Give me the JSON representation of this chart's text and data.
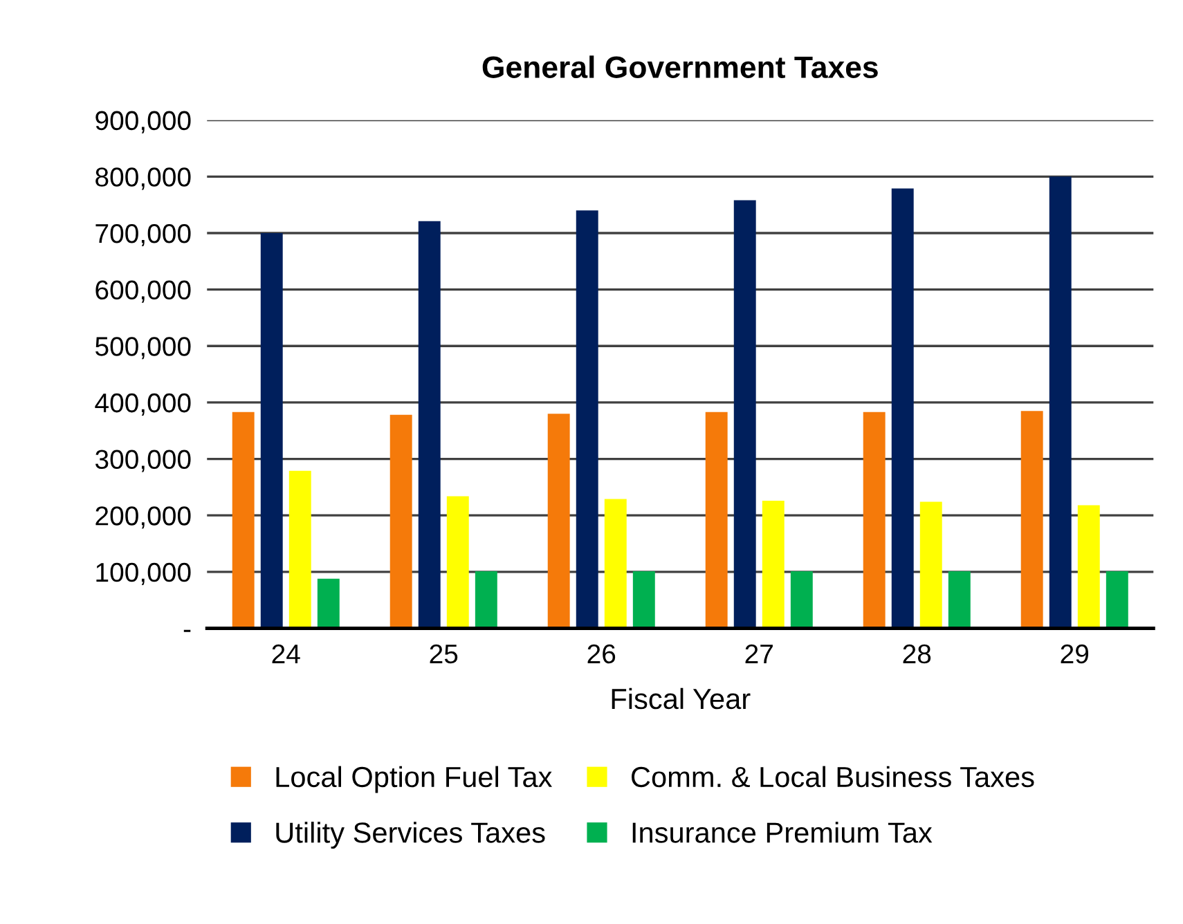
{
  "chart_data": {
    "type": "bar",
    "title": "General Government Taxes",
    "xlabel": "Fiscal Year",
    "categories": [
      "24",
      "25",
      "26",
      "27",
      "28",
      "29"
    ],
    "series": [
      {
        "name": "Local Option Fuel Tax",
        "color": "#f57a0a",
        "values": [
          383000,
          378000,
          380000,
          383000,
          383000,
          385000
        ]
      },
      {
        "name": "Utility Services Taxes",
        "color": "#001f5c",
        "values": [
          700000,
          721000,
          740000,
          758000,
          779000,
          800000
        ]
      },
      {
        "name": "Comm. & Local Business Taxes",
        "color": "#ffff00",
        "values": [
          279000,
          234000,
          229000,
          226000,
          224000,
          218000
        ]
      },
      {
        "name": "Insurance Premium Tax",
        "color": "#00b050",
        "values": [
          88000,
          101000,
          101000,
          101000,
          101000,
          101000
        ]
      }
    ],
    "ylim": [
      0,
      900000
    ],
    "yticks": [
      {
        "value": 0,
        "label": "-"
      },
      {
        "value": 100000,
        "label": "100,000"
      },
      {
        "value": 200000,
        "label": "200,000"
      },
      {
        "value": 300000,
        "label": "300,000"
      },
      {
        "value": 400000,
        "label": "400,000"
      },
      {
        "value": 500000,
        "label": "500,000"
      },
      {
        "value": 600000,
        "label": "600,000"
      },
      {
        "value": 700000,
        "label": "700,000"
      },
      {
        "value": 800000,
        "label": "800,000"
      },
      {
        "value": 900000,
        "label": "900,000"
      }
    ],
    "grid": "y",
    "legend": "bottom"
  }
}
